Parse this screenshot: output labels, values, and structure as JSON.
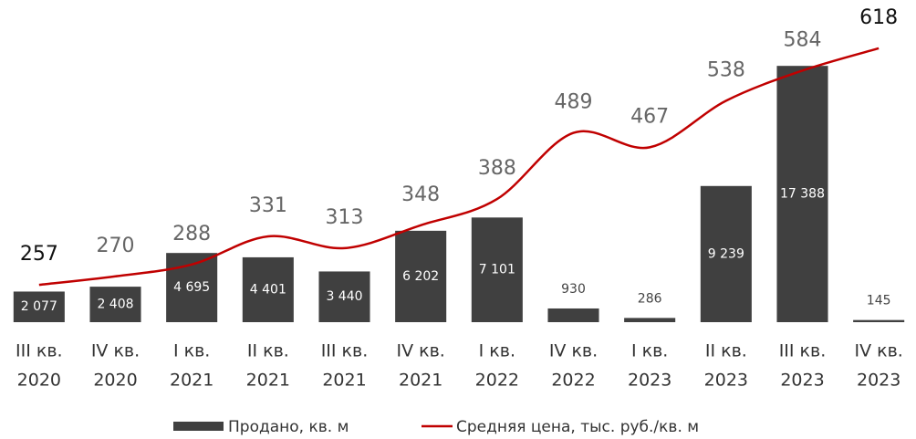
{
  "chart_data": {
    "type": "bar",
    "categories": [
      [
        "III кв.",
        "2020"
      ],
      [
        "IV кв.",
        "2020"
      ],
      [
        "I кв.",
        "2021"
      ],
      [
        "II кв.",
        "2021"
      ],
      [
        "III кв.",
        "2021"
      ],
      [
        "IV кв.",
        "2021"
      ],
      [
        "I кв.",
        "2022"
      ],
      [
        "IV кв.",
        "2022"
      ],
      [
        "I кв.",
        "2023"
      ],
      [
        "II кв.",
        "2023"
      ],
      [
        "III кв.",
        "2023"
      ],
      [
        "IV кв.",
        "2023"
      ]
    ],
    "series": [
      {
        "name": "Продано, кв. м",
        "type": "bar",
        "color": "#404040",
        "values": [
          2077,
          2408,
          4695,
          4401,
          3440,
          6202,
          7101,
          930,
          286,
          9239,
          17388,
          145
        ],
        "value_labels": [
          "2 077",
          "2 408",
          "4 695",
          "4 401",
          "3 440",
          "6 202",
          "7 101",
          "930",
          "286",
          "9 239",
          "17 388",
          "145"
        ]
      },
      {
        "name": "Средняя цена, тыс. руб./кв. м",
        "type": "line",
        "color": "#c00000",
        "axis": "y2",
        "values": [
          257,
          270,
          288,
          331,
          313,
          348,
          388,
          489,
          467,
          538,
          584,
          618
        ]
      }
    ],
    "ylim": [
      0,
      20000
    ],
    "y2lim": [
      200,
      650
    ],
    "legend": "bottom"
  }
}
